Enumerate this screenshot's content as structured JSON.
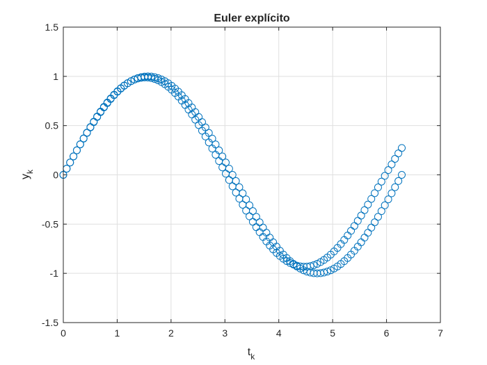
{
  "chart_data": {
    "type": "scatter",
    "title": "Euler explícito",
    "xlabel": {
      "main": "t",
      "sub": "k"
    },
    "ylabel": {
      "main": "y",
      "sub": "k"
    },
    "xlim": [
      0,
      7
    ],
    "ylim": [
      -1.5,
      1.5
    ],
    "xticks": [
      0,
      1,
      2,
      3,
      4,
      5,
      6,
      7
    ],
    "xtick_labels": [
      "0",
      "1",
      "2",
      "3",
      "4",
      "5",
      "6",
      "7"
    ],
    "yticks": [
      1.5,
      1,
      0.5,
      0,
      -0.5,
      -1,
      -1.5
    ],
    "ytick_labels": [
      "1.5",
      "1",
      "0.5",
      "0",
      "-0.5",
      "-1",
      "-1.5"
    ],
    "grid": true,
    "marker": "o",
    "color": "#0072BD",
    "series": [
      {
        "x": [
          0,
          0.0628,
          0.1257,
          0.1885,
          0.2513,
          0.3142,
          0.377,
          0.4398,
          0.5027,
          0.5655,
          0.6283,
          0.6912,
          0.754,
          0.8168,
          0.8796,
          0.9425,
          1.0053,
          1.0681,
          1.131,
          1.1938,
          1.2566,
          1.3195,
          1.3823,
          1.4451,
          1.508,
          1.5708,
          1.6336,
          1.6965,
          1.7593,
          1.8221,
          1.885,
          1.9478,
          2.0106,
          2.0735,
          2.1363,
          2.1991,
          2.2619,
          2.3248,
          2.3876,
          2.4504,
          2.5133,
          2.5761,
          2.6389,
          2.7018,
          2.7646,
          2.8274,
          2.8903,
          2.9531,
          3.0159,
          3.0788,
          3.1416,
          3.2044,
          3.2673,
          3.3301,
          3.3929,
          3.4558,
          3.5186,
          3.5814,
          3.6442,
          3.7071,
          3.7699,
          3.8327,
          3.8956,
          3.9584,
          4.0212,
          4.0841,
          4.1469,
          4.2097,
          4.2726,
          4.3354,
          4.3982,
          4.4611,
          4.5239,
          4.5867,
          4.6496,
          4.7124,
          4.7752,
          4.8381,
          4.9009,
          4.9637,
          5.0265,
          5.0894,
          5.1522,
          5.215,
          5.2779,
          5.3407,
          5.4035,
          5.4664,
          5.5292,
          5.592,
          5.6549,
          5.7177,
          5.7805,
          5.8434,
          5.9062,
          5.969,
          6.0319,
          6.0947,
          6.1575,
          6.2204,
          6.2832
        ],
        "y": [
          0,
          0.0628,
          0.1253,
          0.1874,
          0.2487,
          0.309,
          0.3681,
          0.4258,
          0.4818,
          0.5358,
          0.5878,
          0.6374,
          0.6845,
          0.729,
          0.7705,
          0.809,
          0.8443,
          0.8763,
          0.9048,
          0.9298,
          0.9511,
          0.9686,
          0.9823,
          0.9921,
          0.998,
          1.0,
          0.998,
          0.9921,
          0.9823,
          0.9686,
          0.9511,
          0.9298,
          0.9048,
          0.8763,
          0.8443,
          0.809,
          0.7705,
          0.729,
          0.6845,
          0.6374,
          0.5878,
          0.5358,
          0.4818,
          0.4258,
          0.3681,
          0.309,
          0.2487,
          0.1874,
          0.1253,
          0.0628,
          0.0,
          -0.0628,
          -0.1253,
          -0.1874,
          -0.2487,
          -0.309,
          -0.3681,
          -0.4258,
          -0.4818,
          -0.5358,
          -0.5878,
          -0.6374,
          -0.6845,
          -0.729,
          -0.7705,
          -0.809,
          -0.8443,
          -0.8763,
          -0.9048,
          -0.9298,
          -0.9511,
          -0.9686,
          -0.9823,
          -0.9921,
          -0.998,
          -1.0,
          -0.998,
          -0.9921,
          -0.9823,
          -0.9686,
          -0.9511,
          -0.9298,
          -0.9048,
          -0.8763,
          -0.8443,
          -0.809,
          -0.7705,
          -0.729,
          -0.6845,
          -0.6374,
          -0.5878,
          -0.5358,
          -0.4818,
          -0.4258,
          -0.3681,
          -0.309,
          -0.2487,
          -0.1874,
          -0.1253,
          -0.0628,
          -0.0
        ]
      },
      {
        "x": [
          0,
          0.0628,
          0.1257,
          0.1885,
          0.2513,
          0.3142,
          0.377,
          0.4398,
          0.5027,
          0.5655,
          0.6283,
          0.6912,
          0.754,
          0.8168,
          0.8796,
          0.9425,
          1.0053,
          1.0681,
          1.131,
          1.1938,
          1.2566,
          1.3195,
          1.3823,
          1.4451,
          1.508,
          1.5708,
          1.6336,
          1.6965,
          1.7593,
          1.8221,
          1.885,
          1.9478,
          2.0106,
          2.0735,
          2.1363,
          2.1991,
          2.2619,
          2.3248,
          2.3876,
          2.4504,
          2.5133,
          2.5761,
          2.6389,
          2.7018,
          2.7646,
          2.8274,
          2.8903,
          2.9531,
          3.0159,
          3.0788,
          3.1416,
          3.2044,
          3.2673,
          3.3301,
          3.3929,
          3.4558,
          3.5186,
          3.5814,
          3.6442,
          3.7071,
          3.7699,
          3.8327,
          3.8956,
          3.9584,
          4.0212,
          4.0841,
          4.1469,
          4.2097,
          4.2726,
          4.3354,
          4.3982,
          4.4611,
          4.5239,
          4.5867,
          4.6496,
          4.7124,
          4.7752,
          4.8381,
          4.9009,
          4.9637,
          5.0265,
          5.0894,
          5.1522,
          5.215,
          5.2779,
          5.3407,
          5.4035,
          5.4664,
          5.5292,
          5.592,
          5.6549,
          5.7177,
          5.7805,
          5.8434,
          5.9062,
          5.969,
          6.0319,
          6.0947,
          6.1575,
          6.2204,
          6.2832
        ],
        "y": [
          0,
          0.0628,
          0.1257,
          0.1881,
          0.25,
          0.3109,
          0.3706,
          0.4289,
          0.4855,
          0.5401,
          0.5925,
          0.6425,
          0.6898,
          0.7343,
          0.7757,
          0.8139,
          0.8487,
          0.88,
          0.9075,
          0.9312,
          0.951,
          0.9668,
          0.9784,
          0.9859,
          0.9892,
          0.9883,
          0.9831,
          0.9737,
          0.9601,
          0.9423,
          0.9205,
          0.8946,
          0.8649,
          0.8314,
          0.7943,
          0.7537,
          0.7099,
          0.6629,
          0.6131,
          0.5606,
          0.5057,
          0.4487,
          0.3897,
          0.3291,
          0.2672,
          0.2042,
          0.1405,
          0.0763,
          0.0119,
          -0.0524,
          -0.1164,
          -0.1797,
          -0.2421,
          -0.3033,
          -0.363,
          -0.421,
          -0.477,
          -0.5307,
          -0.5818,
          -0.6302,
          -0.6756,
          -0.7178,
          -0.7567,
          -0.7919,
          -0.8235,
          -0.8513,
          -0.8751,
          -0.8949,
          -0.9106,
          -0.9221,
          -0.9294,
          -0.9325,
          -0.9314,
          -0.9261,
          -0.9166,
          -0.9031,
          -0.8855,
          -0.8641,
          -0.8388,
          -0.8099,
          -0.7774,
          -0.7416,
          -0.7026,
          -0.6606,
          -0.6158,
          -0.5684,
          -0.5187,
          -0.4669,
          -0.4133,
          -0.3581,
          -0.3017,
          -0.2442,
          -0.186,
          -0.1274,
          -0.0686,
          -0.01,
          0.0483,
          0.1059,
          0.1627,
          0.2183,
          0.2727
        ]
      }
    ]
  }
}
